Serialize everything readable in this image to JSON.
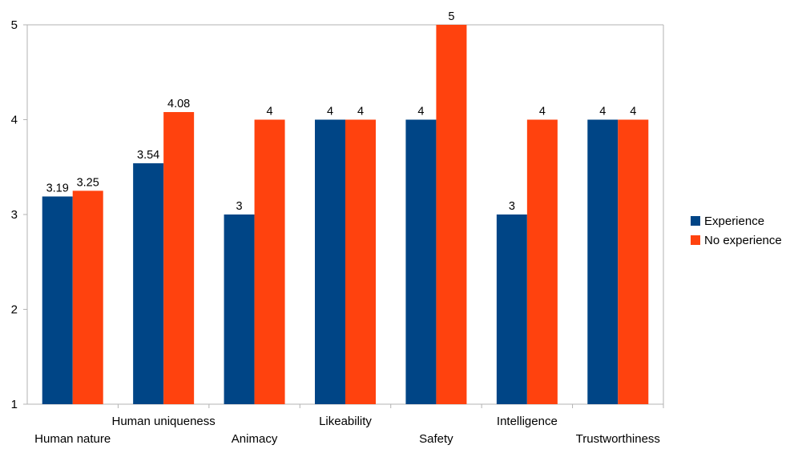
{
  "chart_data": {
    "type": "bar",
    "title": "",
    "xlabel": "",
    "ylabel": "",
    "categories": [
      "Human nature",
      "Human uniqueness",
      "Animacy",
      "Likeability",
      "Safety",
      "Intelligence",
      "Trustworthiness"
    ],
    "series": [
      {
        "name": "Experience",
        "color": "#004586",
        "values": [
          3.19,
          3.54,
          3,
          4,
          4,
          3,
          4
        ],
        "labels": [
          "3.19",
          "3.54",
          "3",
          "4",
          "4",
          "3",
          "4"
        ]
      },
      {
        "name": "No experience",
        "color": "#ff420e",
        "values": [
          3.25,
          4.08,
          4,
          4,
          5,
          4,
          4
        ],
        "labels": [
          "3.25",
          "4.08",
          "4",
          "4",
          "5",
          "4",
          "4"
        ]
      }
    ],
    "ylim": [
      1,
      5
    ],
    "yticks": [
      "1",
      "2",
      "3",
      "4",
      "5"
    ],
    "grid": false,
    "legend_position": "right"
  }
}
